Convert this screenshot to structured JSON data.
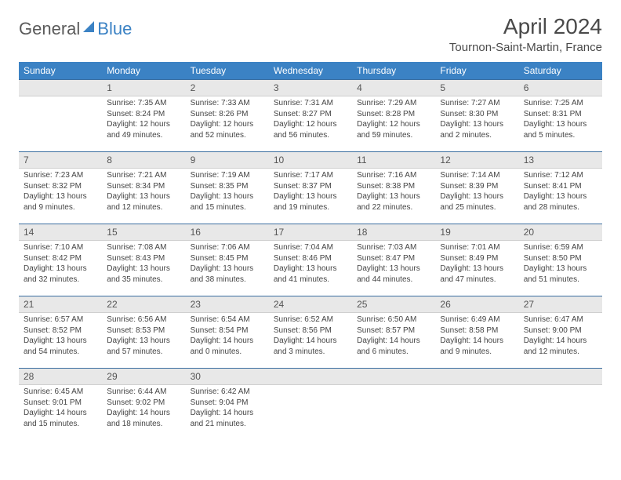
{
  "logo": {
    "text1": "General",
    "text2": "Blue"
  },
  "title": "April 2024",
  "location": "Tournon-Saint-Martin, France",
  "day_headers": [
    "Sunday",
    "Monday",
    "Tuesday",
    "Wednesday",
    "Thursday",
    "Friday",
    "Saturday"
  ],
  "colors": {
    "header_bg": "#3b82c4",
    "header_text": "#ffffff",
    "daynum_bg": "#e8e8e8",
    "daynum_border_top": "#3b6ea0",
    "body_text": "#444444",
    "page_bg": "#ffffff"
  },
  "weeks": [
    [
      {
        "n": "",
        "sunrise": "",
        "sunset": "",
        "daylight": ""
      },
      {
        "n": "1",
        "sunrise": "Sunrise: 7:35 AM",
        "sunset": "Sunset: 8:24 PM",
        "daylight": "Daylight: 12 hours and 49 minutes."
      },
      {
        "n": "2",
        "sunrise": "Sunrise: 7:33 AM",
        "sunset": "Sunset: 8:26 PM",
        "daylight": "Daylight: 12 hours and 52 minutes."
      },
      {
        "n": "3",
        "sunrise": "Sunrise: 7:31 AM",
        "sunset": "Sunset: 8:27 PM",
        "daylight": "Daylight: 12 hours and 56 minutes."
      },
      {
        "n": "4",
        "sunrise": "Sunrise: 7:29 AM",
        "sunset": "Sunset: 8:28 PM",
        "daylight": "Daylight: 12 hours and 59 minutes."
      },
      {
        "n": "5",
        "sunrise": "Sunrise: 7:27 AM",
        "sunset": "Sunset: 8:30 PM",
        "daylight": "Daylight: 13 hours and 2 minutes."
      },
      {
        "n": "6",
        "sunrise": "Sunrise: 7:25 AM",
        "sunset": "Sunset: 8:31 PM",
        "daylight": "Daylight: 13 hours and 5 minutes."
      }
    ],
    [
      {
        "n": "7",
        "sunrise": "Sunrise: 7:23 AM",
        "sunset": "Sunset: 8:32 PM",
        "daylight": "Daylight: 13 hours and 9 minutes."
      },
      {
        "n": "8",
        "sunrise": "Sunrise: 7:21 AM",
        "sunset": "Sunset: 8:34 PM",
        "daylight": "Daylight: 13 hours and 12 minutes."
      },
      {
        "n": "9",
        "sunrise": "Sunrise: 7:19 AM",
        "sunset": "Sunset: 8:35 PM",
        "daylight": "Daylight: 13 hours and 15 minutes."
      },
      {
        "n": "10",
        "sunrise": "Sunrise: 7:17 AM",
        "sunset": "Sunset: 8:37 PM",
        "daylight": "Daylight: 13 hours and 19 minutes."
      },
      {
        "n": "11",
        "sunrise": "Sunrise: 7:16 AM",
        "sunset": "Sunset: 8:38 PM",
        "daylight": "Daylight: 13 hours and 22 minutes."
      },
      {
        "n": "12",
        "sunrise": "Sunrise: 7:14 AM",
        "sunset": "Sunset: 8:39 PM",
        "daylight": "Daylight: 13 hours and 25 minutes."
      },
      {
        "n": "13",
        "sunrise": "Sunrise: 7:12 AM",
        "sunset": "Sunset: 8:41 PM",
        "daylight": "Daylight: 13 hours and 28 minutes."
      }
    ],
    [
      {
        "n": "14",
        "sunrise": "Sunrise: 7:10 AM",
        "sunset": "Sunset: 8:42 PM",
        "daylight": "Daylight: 13 hours and 32 minutes."
      },
      {
        "n": "15",
        "sunrise": "Sunrise: 7:08 AM",
        "sunset": "Sunset: 8:43 PM",
        "daylight": "Daylight: 13 hours and 35 minutes."
      },
      {
        "n": "16",
        "sunrise": "Sunrise: 7:06 AM",
        "sunset": "Sunset: 8:45 PM",
        "daylight": "Daylight: 13 hours and 38 minutes."
      },
      {
        "n": "17",
        "sunrise": "Sunrise: 7:04 AM",
        "sunset": "Sunset: 8:46 PM",
        "daylight": "Daylight: 13 hours and 41 minutes."
      },
      {
        "n": "18",
        "sunrise": "Sunrise: 7:03 AM",
        "sunset": "Sunset: 8:47 PM",
        "daylight": "Daylight: 13 hours and 44 minutes."
      },
      {
        "n": "19",
        "sunrise": "Sunrise: 7:01 AM",
        "sunset": "Sunset: 8:49 PM",
        "daylight": "Daylight: 13 hours and 47 minutes."
      },
      {
        "n": "20",
        "sunrise": "Sunrise: 6:59 AM",
        "sunset": "Sunset: 8:50 PM",
        "daylight": "Daylight: 13 hours and 51 minutes."
      }
    ],
    [
      {
        "n": "21",
        "sunrise": "Sunrise: 6:57 AM",
        "sunset": "Sunset: 8:52 PM",
        "daylight": "Daylight: 13 hours and 54 minutes."
      },
      {
        "n": "22",
        "sunrise": "Sunrise: 6:56 AM",
        "sunset": "Sunset: 8:53 PM",
        "daylight": "Daylight: 13 hours and 57 minutes."
      },
      {
        "n": "23",
        "sunrise": "Sunrise: 6:54 AM",
        "sunset": "Sunset: 8:54 PM",
        "daylight": "Daylight: 14 hours and 0 minutes."
      },
      {
        "n": "24",
        "sunrise": "Sunrise: 6:52 AM",
        "sunset": "Sunset: 8:56 PM",
        "daylight": "Daylight: 14 hours and 3 minutes."
      },
      {
        "n": "25",
        "sunrise": "Sunrise: 6:50 AM",
        "sunset": "Sunset: 8:57 PM",
        "daylight": "Daylight: 14 hours and 6 minutes."
      },
      {
        "n": "26",
        "sunrise": "Sunrise: 6:49 AM",
        "sunset": "Sunset: 8:58 PM",
        "daylight": "Daylight: 14 hours and 9 minutes."
      },
      {
        "n": "27",
        "sunrise": "Sunrise: 6:47 AM",
        "sunset": "Sunset: 9:00 PM",
        "daylight": "Daylight: 14 hours and 12 minutes."
      }
    ],
    [
      {
        "n": "28",
        "sunrise": "Sunrise: 6:45 AM",
        "sunset": "Sunset: 9:01 PM",
        "daylight": "Daylight: 14 hours and 15 minutes."
      },
      {
        "n": "29",
        "sunrise": "Sunrise: 6:44 AM",
        "sunset": "Sunset: 9:02 PM",
        "daylight": "Daylight: 14 hours and 18 minutes."
      },
      {
        "n": "30",
        "sunrise": "Sunrise: 6:42 AM",
        "sunset": "Sunset: 9:04 PM",
        "daylight": "Daylight: 14 hours and 21 minutes."
      },
      {
        "n": "",
        "sunrise": "",
        "sunset": "",
        "daylight": ""
      },
      {
        "n": "",
        "sunrise": "",
        "sunset": "",
        "daylight": ""
      },
      {
        "n": "",
        "sunrise": "",
        "sunset": "",
        "daylight": ""
      },
      {
        "n": "",
        "sunrise": "",
        "sunset": "",
        "daylight": ""
      }
    ]
  ]
}
